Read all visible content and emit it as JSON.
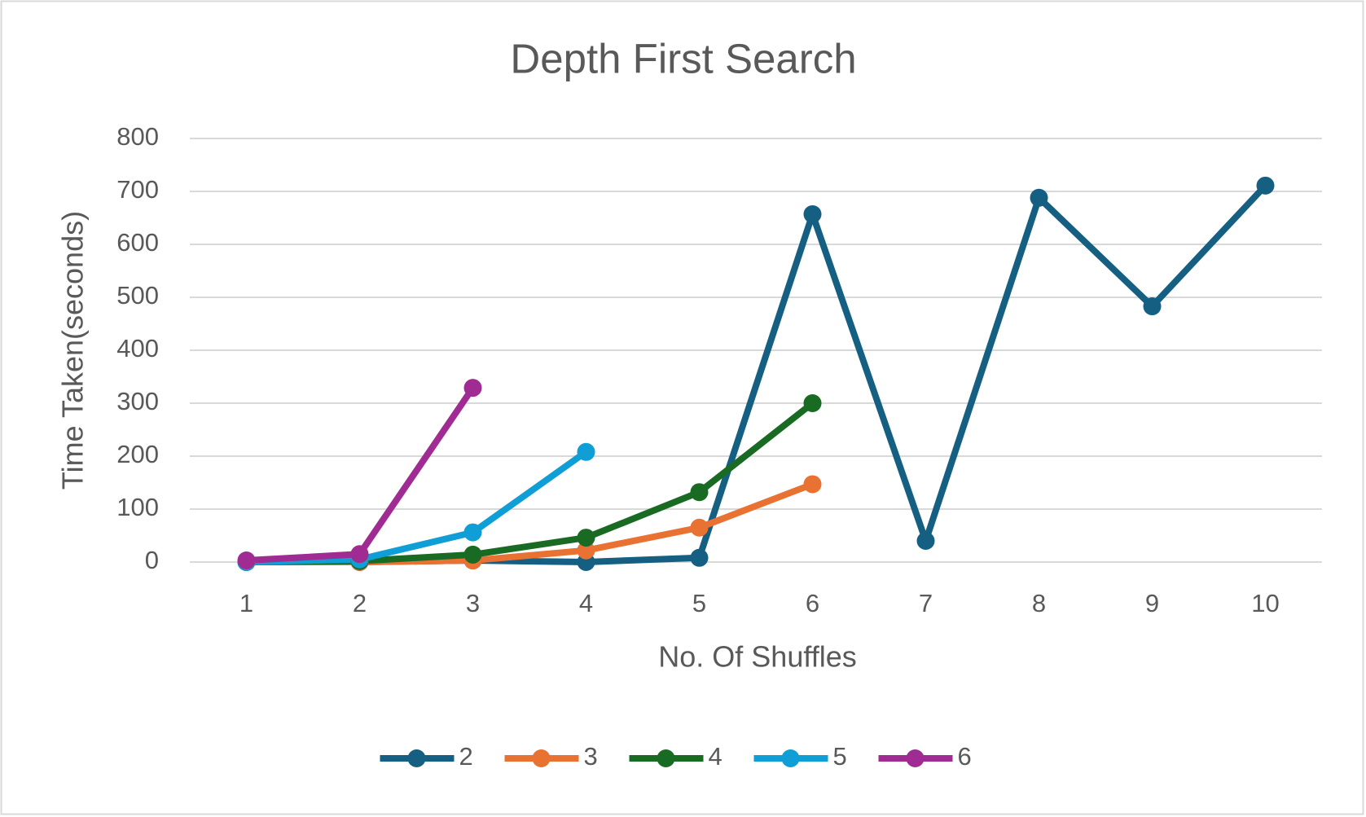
{
  "chart_data": {
    "type": "line",
    "title": "Depth First Search",
    "x_label": "No. Of Shuffles",
    "y_label": "Time Taken(seconds)",
    "categories": [
      "1",
      "2",
      "3",
      "4",
      "5",
      "6",
      "7",
      "8",
      "9",
      "10"
    ],
    "series": [
      {
        "name": "2",
        "color": "#156082",
        "values": [
          0,
          0,
          3,
          0,
          8,
          657,
          40,
          688,
          483,
          711
        ]
      },
      {
        "name": "3",
        "color": "#e97132",
        "values": [
          0,
          0,
          3,
          22,
          65,
          147,
          null,
          null,
          null,
          null
        ]
      },
      {
        "name": "4",
        "color": "#196b24",
        "values": [
          0,
          2,
          14,
          46,
          132,
          300,
          null,
          null,
          null,
          null
        ]
      },
      {
        "name": "5",
        "color": "#0f9ed5",
        "values": [
          0,
          5,
          56,
          208,
          null,
          null,
          null,
          null,
          null,
          null
        ]
      },
      {
        "name": "6",
        "color": "#a02b93",
        "values": [
          3,
          15,
          329,
          null,
          null,
          null,
          null,
          null,
          null,
          null
        ]
      }
    ],
    "ylim": [
      0,
      800
    ],
    "yticks": [
      0,
      100,
      200,
      300,
      400,
      500,
      600,
      700,
      800
    ],
    "grid": true,
    "legend": "bottom"
  }
}
